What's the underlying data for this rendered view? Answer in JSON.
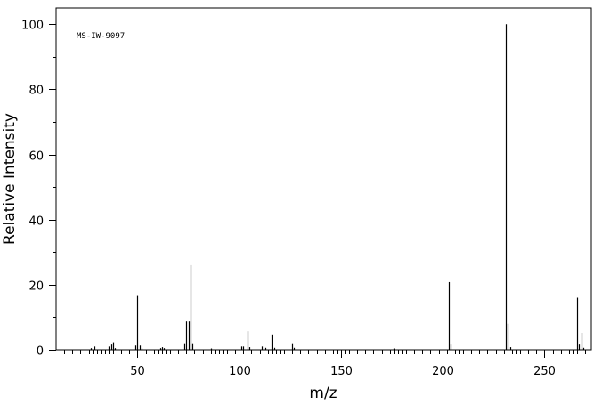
{
  "chart_data": {
    "type": "bar",
    "annotation": "MS-IW-9097",
    "xlabel": "m/z",
    "ylabel": "Relative Intensity",
    "xlim": [
      10,
      273
    ],
    "ylim": [
      0,
      105
    ],
    "x_ticks": [
      50,
      100,
      150,
      200,
      250
    ],
    "y_ticks": [
      0,
      20,
      40,
      60,
      80,
      100
    ],
    "grid": false,
    "line_color": "#000000",
    "peaks": [
      {
        "mz": 27,
        "intensity": 0.5
      },
      {
        "mz": 29,
        "intensity": 1.0
      },
      {
        "mz": 36,
        "intensity": 1.0
      },
      {
        "mz": 37,
        "intensity": 1.6
      },
      {
        "mz": 38,
        "intensity": 2.3
      },
      {
        "mz": 39,
        "intensity": 0.5
      },
      {
        "mz": 49,
        "intensity": 1.3
      },
      {
        "mz": 50,
        "intensity": 16.8
      },
      {
        "mz": 51,
        "intensity": 1.3
      },
      {
        "mz": 52,
        "intensity": 0.4
      },
      {
        "mz": 61,
        "intensity": 0.5
      },
      {
        "mz": 62,
        "intensity": 0.8
      },
      {
        "mz": 63,
        "intensity": 0.5
      },
      {
        "mz": 73,
        "intensity": 2.0
      },
      {
        "mz": 74,
        "intensity": 8.7
      },
      {
        "mz": 75,
        "intensity": 8.7
      },
      {
        "mz": 76,
        "intensity": 26.0
      },
      {
        "mz": 77,
        "intensity": 2.0
      },
      {
        "mz": 86,
        "intensity": 0.4
      },
      {
        "mz": 101,
        "intensity": 1.0
      },
      {
        "mz": 102,
        "intensity": 1.0
      },
      {
        "mz": 104,
        "intensity": 5.7
      },
      {
        "mz": 105,
        "intensity": 0.8
      },
      {
        "mz": 111,
        "intensity": 1.0
      },
      {
        "mz": 113,
        "intensity": 0.6
      },
      {
        "mz": 116,
        "intensity": 4.7
      },
      {
        "mz": 117,
        "intensity": 0.6
      },
      {
        "mz": 126,
        "intensity": 2.0
      },
      {
        "mz": 127,
        "intensity": 0.6
      },
      {
        "mz": 176,
        "intensity": 0.4
      },
      {
        "mz": 203,
        "intensity": 20.8
      },
      {
        "mz": 204,
        "intensity": 1.6
      },
      {
        "mz": 231,
        "intensity": 100.0
      },
      {
        "mz": 232,
        "intensity": 8.0
      },
      {
        "mz": 233,
        "intensity": 0.8
      },
      {
        "mz": 266,
        "intensity": 16.0
      },
      {
        "mz": 267,
        "intensity": 1.6
      },
      {
        "mz": 268,
        "intensity": 5.2
      },
      {
        "mz": 269,
        "intensity": 0.6
      }
    ]
  }
}
